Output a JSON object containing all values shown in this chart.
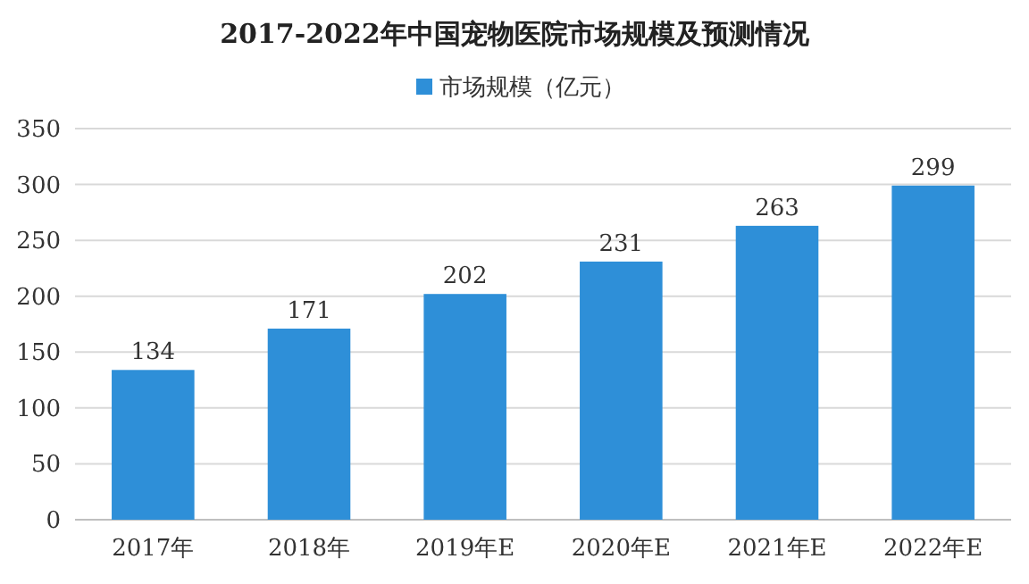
{
  "chart_data": {
    "type": "bar",
    "title": "2017-2022年中国宠物医院市场规模及预测情况",
    "categories": [
      "2017年",
      "2018年",
      "2019年E",
      "2020年E",
      "2021年E",
      "2022年E"
    ],
    "series": [
      {
        "name": "市场规模（亿元）",
        "color": "#2e8fd8",
        "values": [
          134,
          171,
          202,
          231,
          263,
          299
        ]
      }
    ],
    "ylim": [
      0,
      350
    ],
    "yticks": [
      0,
      50,
      100,
      150,
      200,
      250,
      300,
      350
    ],
    "grid": "y",
    "legend": "top",
    "data_labels": true
  }
}
